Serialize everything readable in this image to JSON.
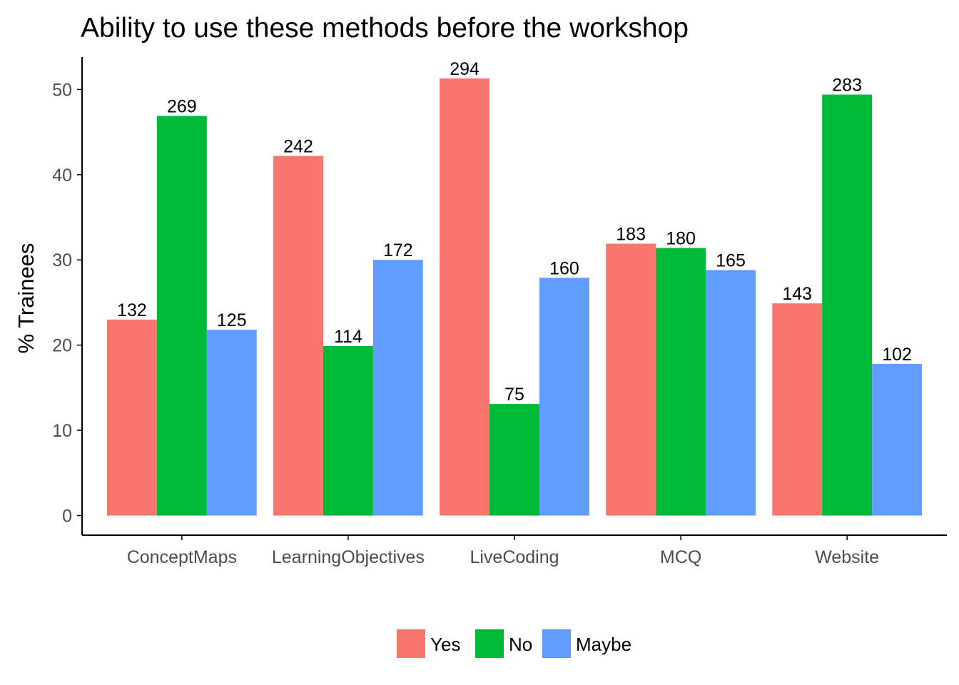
{
  "chart_data": {
    "type": "bar",
    "title": "Ability to use these methods before the workshop",
    "xlabel": "",
    "ylabel": "% Trainees",
    "categories": [
      "ConceptMaps",
      "LearningObjectives",
      "LiveCoding",
      "MCQ",
      "Website"
    ],
    "series": [
      {
        "name": "Yes",
        "color": "#F8766D",
        "values": [
          23.0,
          42.2,
          51.3,
          31.9,
          24.9
        ],
        "labels": [
          "132",
          "242",
          "294",
          "183",
          "143"
        ]
      },
      {
        "name": "No",
        "color": "#00BA38",
        "values": [
          46.9,
          19.9,
          13.1,
          31.4,
          49.4
        ],
        "labels": [
          "269",
          "114",
          "75",
          "180",
          "283"
        ]
      },
      {
        "name": "Maybe",
        "color": "#619CFF",
        "values": [
          21.8,
          30.0,
          27.9,
          28.8,
          17.8
        ],
        "labels": [
          "125",
          "172",
          "160",
          "165",
          "102"
        ]
      }
    ],
    "yticks": [
      "0",
      "10",
      "20",
      "30",
      "40",
      "50"
    ],
    "ylim": [
      -2.3,
      53.8
    ],
    "grid": false,
    "legend_position": "bottom"
  }
}
